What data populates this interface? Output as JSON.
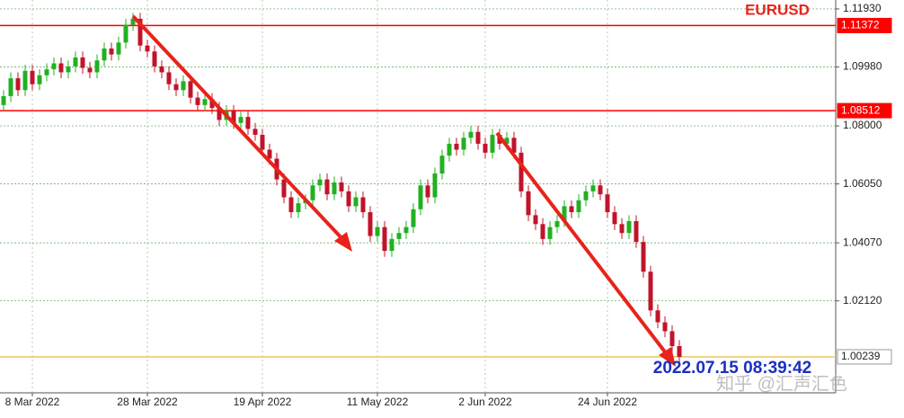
{
  "chart_data": {
    "type": "candlestick",
    "title": "EURUSD",
    "timestamp": "2022.07.15 08:39:42",
    "watermark": "知乎 @汇声汇色",
    "categories": [
      null,
      null,
      null,
      null,
      "8 Mar 2022",
      null,
      null,
      null,
      null,
      null,
      null,
      null,
      null,
      null,
      null,
      null,
      null,
      null,
      null,
      null,
      "28 Mar 2022",
      null,
      null,
      null,
      null,
      null,
      null,
      null,
      null,
      null,
      null,
      null,
      null,
      null,
      null,
      null,
      "19 Apr 2022",
      null,
      null,
      null,
      null,
      null,
      null,
      null,
      null,
      null,
      null,
      null,
      null,
      null,
      null,
      null,
      "11 May 2022",
      null,
      null,
      null,
      null,
      null,
      null,
      null,
      null,
      null,
      null,
      null,
      null,
      null,
      null,
      "2 Jun 2022",
      null,
      null,
      null,
      null,
      null,
      null,
      null,
      null,
      null,
      null,
      null,
      null,
      null,
      null,
      null,
      null,
      "24 Jun 2022",
      null,
      null,
      null,
      null,
      null,
      null,
      null,
      null,
      null,
      null
    ],
    "open": [
      1.087,
      1.09,
      1.096,
      1.092,
      1.0985,
      1.094,
      1.097,
      1.099,
      1.101,
      1.098,
      1.1,
      1.103,
      1.0995,
      1.098,
      1.102,
      1.106,
      1.104,
      1.108,
      1.114,
      1.116,
      1.107,
      1.105,
      1.1,
      1.098,
      1.094,
      1.092,
      1.095,
      1.0895,
      1.087,
      1.089,
      1.086,
      1.082,
      1.085,
      1.081,
      1.083,
      1.079,
      1.077,
      1.072,
      1.069,
      1.062,
      1.056,
      1.051,
      1.054,
      1.055,
      1.06,
      1.062,
      1.057,
      1.061,
      1.058,
      1.053,
      1.056,
      1.051,
      1.043,
      1.046,
      1.038,
      1.042,
      1.044,
      1.046,
      1.052,
      1.06,
      1.056,
      1.064,
      1.07,
      1.074,
      1.072,
      1.076,
      1.078,
      1.074,
      1.071,
      1.077,
      1.074,
      1.076,
      1.071,
      1.058,
      1.05,
      1.047,
      1.042,
      1.046,
      1.048,
      1.053,
      1.051,
      1.055,
      1.058,
      1.06,
      1.057,
      1.051,
      1.047,
      1.044,
      1.048,
      1.041,
      1.031,
      1.018,
      1.014,
      1.011,
      1.006
    ],
    "high": [
      1.092,
      1.098,
      1.098,
      1.1005,
      1.1005,
      1.099,
      1.101,
      1.103,
      1.103,
      1.102,
      1.105,
      1.105,
      1.1015,
      1.104,
      1.108,
      1.108,
      1.11,
      1.116,
      1.118,
      1.118,
      1.109,
      1.107,
      1.102,
      1.1,
      1.096,
      1.097,
      1.097,
      1.0915,
      1.091,
      1.091,
      1.088,
      1.087,
      1.087,
      1.085,
      1.085,
      1.081,
      1.079,
      1.074,
      1.071,
      1.064,
      1.058,
      1.056,
      1.057,
      1.062,
      1.064,
      1.064,
      1.063,
      1.063,
      1.06,
      1.058,
      1.058,
      1.053,
      1.048,
      1.048,
      1.044,
      1.046,
      1.048,
      1.054,
      1.062,
      1.062,
      1.066,
      1.072,
      1.076,
      1.076,
      1.078,
      1.08,
      1.08,
      1.076,
      1.079,
      1.079,
      1.078,
      1.078,
      1.073,
      1.06,
      1.052,
      1.049,
      1.048,
      1.05,
      1.055,
      1.055,
      1.057,
      1.06,
      1.062,
      1.062,
      1.059,
      1.053,
      1.049,
      1.05,
      1.05,
      1.043,
      1.033,
      1.02,
      1.016,
      1.013,
      1.008
    ],
    "low": [
      1.085,
      1.088,
      1.09,
      1.09,
      1.092,
      1.092,
      1.095,
      1.097,
      1.096,
      1.096,
      1.098,
      1.0975,
      1.096,
      1.096,
      1.1,
      1.102,
      1.102,
      1.106,
      1.112,
      1.105,
      1.103,
      1.098,
      1.096,
      1.092,
      1.09,
      1.09,
      1.0875,
      1.085,
      1.085,
      1.084,
      1.08,
      1.08,
      1.079,
      1.079,
      1.077,
      1.075,
      1.07,
      1.067,
      1.06,
      1.054,
      1.049,
      1.049,
      1.052,
      1.053,
      1.058,
      1.055,
      1.055,
      1.056,
      1.051,
      1.051,
      1.049,
      1.041,
      1.041,
      1.036,
      1.036,
      1.04,
      1.042,
      1.044,
      1.05,
      1.054,
      1.054,
      1.062,
      1.068,
      1.07,
      1.07,
      1.074,
      1.072,
      1.069,
      1.069,
      1.072,
      1.072,
      1.069,
      1.056,
      1.048,
      1.045,
      1.04,
      1.04,
      1.044,
      1.046,
      1.049,
      1.049,
      1.053,
      1.056,
      1.055,
      1.049,
      1.045,
      1.042,
      1.042,
      1.039,
      1.029,
      1.016,
      1.012,
      1.009,
      1.004,
      1.0004
    ],
    "close": [
      1.09,
      1.096,
      1.092,
      1.0985,
      1.094,
      1.097,
      1.099,
      1.101,
      1.098,
      1.1,
      1.103,
      1.0995,
      1.098,
      1.102,
      1.106,
      1.104,
      1.108,
      1.114,
      1.116,
      1.107,
      1.105,
      1.1,
      1.098,
      1.094,
      1.092,
      1.095,
      1.0895,
      1.087,
      1.089,
      1.086,
      1.082,
      1.085,
      1.081,
      1.083,
      1.079,
      1.077,
      1.072,
      1.069,
      1.062,
      1.056,
      1.051,
      1.054,
      1.055,
      1.06,
      1.062,
      1.057,
      1.061,
      1.058,
      1.053,
      1.056,
      1.051,
      1.043,
      1.046,
      1.038,
      1.042,
      1.044,
      1.046,
      1.052,
      1.06,
      1.056,
      1.064,
      1.07,
      1.074,
      1.072,
      1.076,
      1.078,
      1.074,
      1.071,
      1.077,
      1.074,
      1.076,
      1.071,
      1.058,
      1.05,
      1.047,
      1.042,
      1.046,
      1.048,
      1.053,
      1.051,
      1.055,
      1.058,
      1.06,
      1.057,
      1.051,
      1.047,
      1.044,
      1.048,
      1.041,
      1.031,
      1.018,
      1.014,
      1.011,
      1.006,
      1.00239
    ],
    "up_color": "#22b022",
    "down_color": "#c0142a",
    "ylim": [
      0.9903,
      1.1223
    ],
    "yticks": [
      {
        "value": 1.1193,
        "label": "1.11930"
      },
      {
        "value": 1.0998,
        "label": "1.09980"
      },
      {
        "value": 1.08,
        "label": "1.08000"
      },
      {
        "value": 1.0605,
        "label": "1.06050"
      },
      {
        "value": 1.0407,
        "label": "1.04070"
      },
      {
        "value": 1.0212,
        "label": "1.02120"
      }
    ],
    "price_lines": [
      {
        "value": 1.11372,
        "label": "1.11372",
        "color": "#ff0000"
      },
      {
        "value": 1.08512,
        "label": "1.08512",
        "color": "#ff0000"
      },
      {
        "value": 1.00239,
        "label": "1.00239",
        "color": "#e8c860"
      }
    ],
    "grid": true
  }
}
